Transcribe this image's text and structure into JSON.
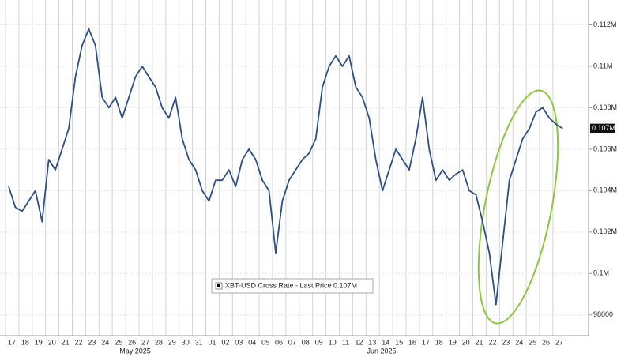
{
  "chart_data": {
    "type": "line",
    "categories": [
      "17",
      null,
      "18",
      null,
      "19",
      null,
      "20",
      null,
      "21",
      null,
      "22",
      null,
      "23",
      null,
      "24",
      null,
      "25",
      null,
      "26",
      null,
      "27",
      null,
      "28",
      null,
      "29",
      null,
      "30",
      null,
      "31",
      null,
      "01",
      null,
      "02",
      null,
      "03",
      null,
      "04",
      null,
      "05",
      null,
      "06",
      null,
      "07",
      null,
      "08",
      null,
      "09",
      null,
      "10",
      null,
      "11",
      null,
      "12",
      null,
      "13",
      null,
      "14",
      null,
      "15",
      null,
      "16",
      null,
      "17",
      null,
      "18",
      null,
      "19",
      null,
      "20",
      null,
      "21",
      null,
      "22",
      null,
      "23",
      null,
      "24",
      null,
      "25",
      null,
      "26",
      null,
      "27",
      null
    ],
    "months": [
      "May 2025",
      "Jun 2025"
    ],
    "series": [
      {
        "name": "XBT-USD Cross Rate - Last Price 0.107M",
        "color": "#2c4f86",
        "values": [
          104200,
          103200,
          103000,
          103500,
          104000,
          102500,
          105500,
          105000,
          106000,
          107000,
          109500,
          111000,
          111800,
          111000,
          108500,
          108000,
          108500,
          107500,
          108500,
          109500,
          110000,
          109500,
          109000,
          108000,
          107500,
          108500,
          106500,
          105500,
          105000,
          104000,
          103500,
          104500,
          104500,
          105000,
          104200,
          105500,
          106000,
          105500,
          104500,
          104000,
          101000,
          103500,
          104500,
          105000,
          105500,
          105800,
          106500,
          109000,
          110000,
          110500,
          110000,
          110500,
          109000,
          108500,
          107500,
          105500,
          104000,
          105000,
          106000,
          105500,
          105000,
          106500,
          108500,
          106000,
          104500,
          105000,
          104500,
          104800,
          105000,
          104000,
          103800,
          102500,
          101000,
          98500,
          101500,
          104500,
          105500,
          106500,
          107000,
          107800,
          108000,
          107500,
          107200,
          107000
        ]
      }
    ],
    "last_price": {
      "value": 107000,
      "label": "0.107M"
    },
    "ylim": [
      97000,
      113200
    ],
    "yticks": [
      {
        "value": 112000,
        "label": "0.112M"
      },
      {
        "value": 110000,
        "label": "0.11M"
      },
      {
        "value": 108000,
        "label": "0.108M"
      },
      {
        "value": 106000,
        "label": "0.106M"
      },
      {
        "value": 104000,
        "label": "0.104M"
      },
      {
        "value": 102000,
        "label": "0.102M"
      },
      {
        "value": 100000,
        "label": "0.1M"
      },
      98000
    ],
    "grid": true
  }
}
